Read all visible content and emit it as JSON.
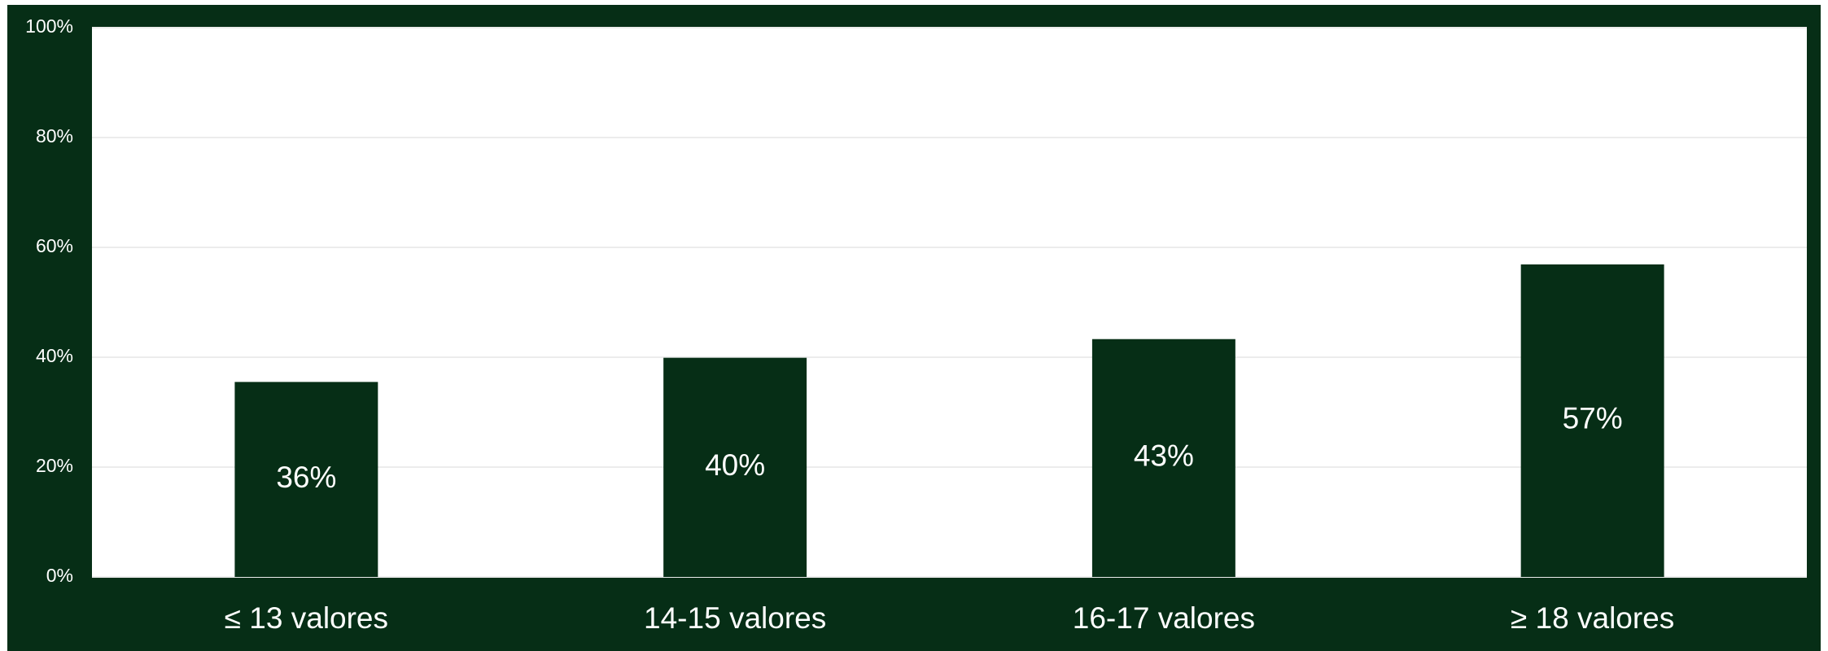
{
  "chart_data": {
    "type": "bar",
    "categories": [
      "≤ 13 valores",
      "14-15 valores",
      "16-17 valores",
      "≥ 18 valores"
    ],
    "values": [
      35.5,
      39.9,
      43.3,
      56.9
    ],
    "value_labels": [
      "36%",
      "40%",
      "43%",
      "57%"
    ],
    "color": "#062e16",
    "ylim": [
      0,
      100
    ],
    "yticks": [
      {
        "value": 0,
        "label": "0%"
      },
      {
        "value": 20,
        "label": "20%"
      },
      {
        "value": 40,
        "label": "40%"
      },
      {
        "value": 60,
        "label": "60%"
      },
      {
        "value": 80,
        "label": "80%"
      },
      {
        "value": 100,
        "label": "100%"
      }
    ],
    "grid": true
  }
}
